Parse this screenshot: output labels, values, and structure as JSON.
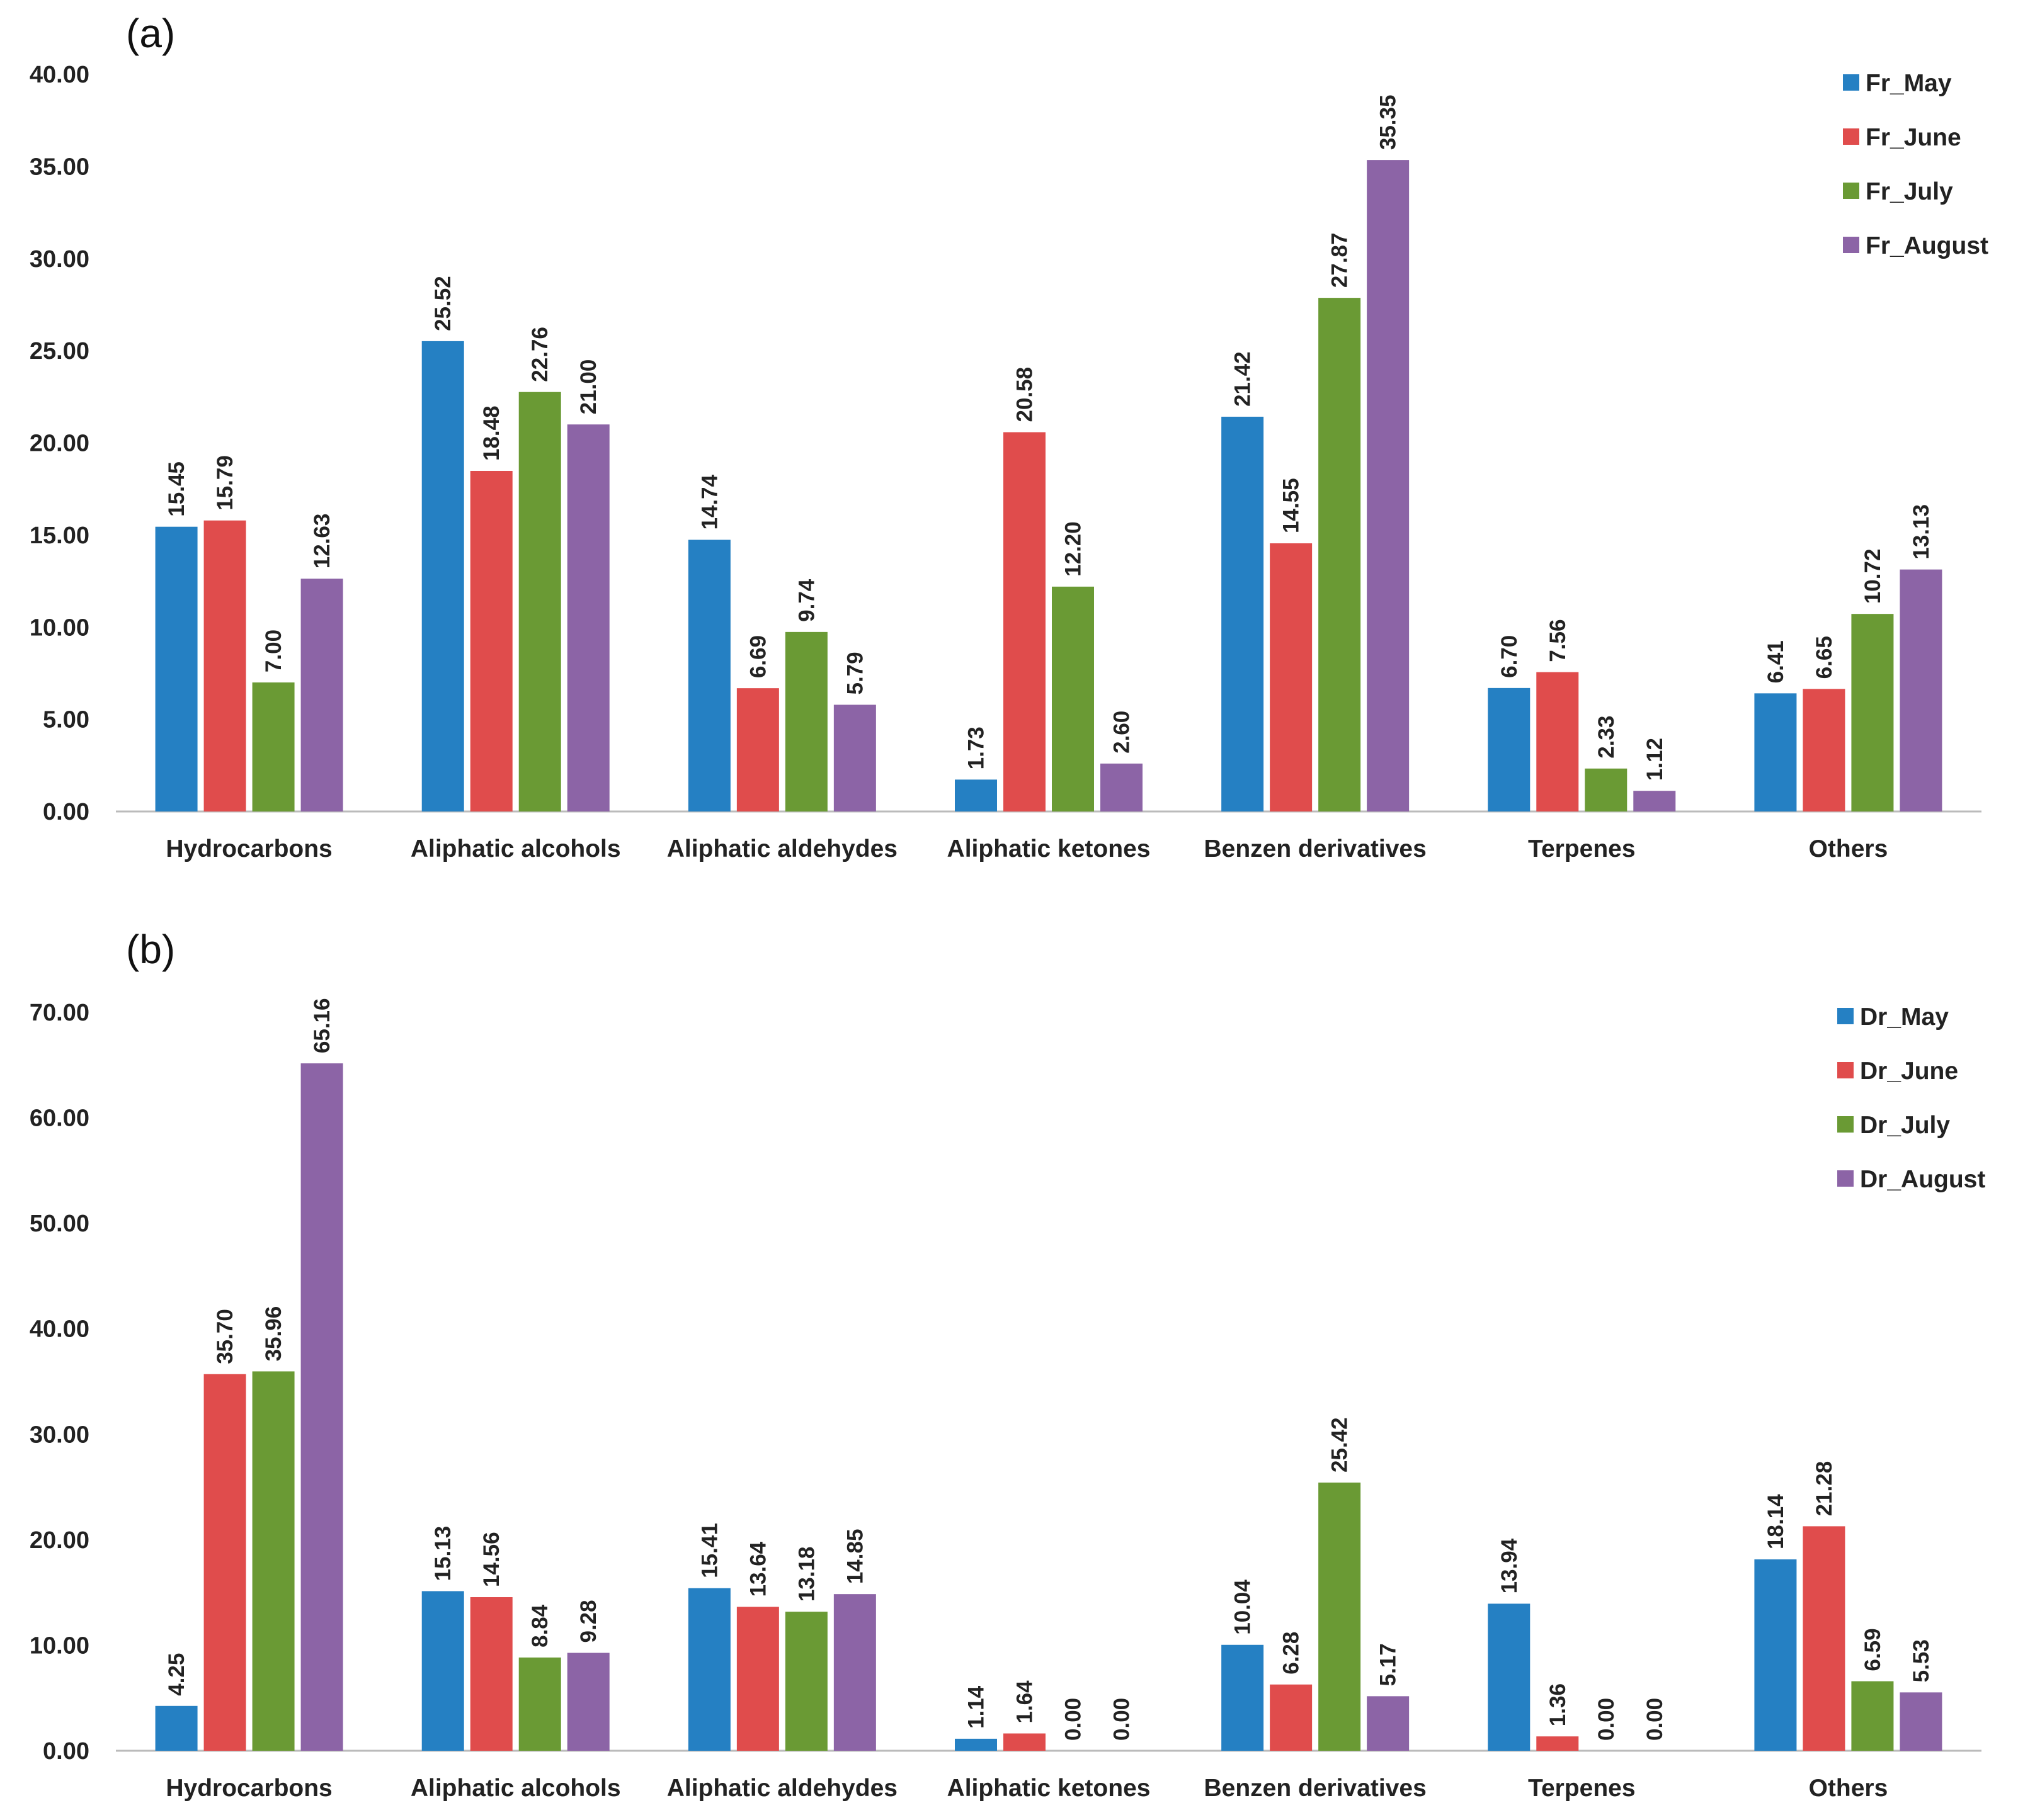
{
  "chart_data": [
    {
      "type": "bar",
      "panel_label": "(a)",
      "categories": [
        "Hydrocarbons",
        "Aliphatic alcohols",
        "Aliphatic aldehydes",
        "Aliphatic ketones",
        "Benzen derivatives",
        "Terpenes",
        "Others"
      ],
      "ylim": [
        0,
        40
      ],
      "yticks": [
        "0.00",
        "5.00",
        "10.00",
        "15.00",
        "20.00",
        "25.00",
        "30.00",
        "35.00",
        "40.00"
      ],
      "grid": false,
      "legend_placement": "top-right",
      "series": [
        {
          "name": "Fr_May",
          "color": "#2580c3",
          "values": [
            15.45,
            25.52,
            14.74,
            1.73,
            21.42,
            6.7,
            6.41
          ]
        },
        {
          "name": "Fr_June",
          "color": "#e04c4c",
          "values": [
            15.79,
            18.48,
            6.69,
            20.58,
            14.55,
            7.56,
            6.65
          ]
        },
        {
          "name": "Fr_July",
          "color": "#6a9a34",
          "values": [
            7.0,
            22.76,
            9.74,
            12.2,
            27.87,
            2.33,
            10.72
          ]
        },
        {
          "name": "Fr_August",
          "color": "#8c64a6",
          "values": [
            12.63,
            21.0,
            5.79,
            2.6,
            35.35,
            1.12,
            13.13
          ]
        }
      ]
    },
    {
      "type": "bar",
      "panel_label": "(b)",
      "categories": [
        "Hydrocarbons",
        "Aliphatic alcohols",
        "Aliphatic aldehydes",
        "Aliphatic ketones",
        "Benzen derivatives",
        "Terpenes",
        "Others"
      ],
      "ylim": [
        0,
        70
      ],
      "yticks": [
        "0.00",
        "10.00",
        "20.00",
        "30.00",
        "40.00",
        "50.00",
        "60.00",
        "70.00"
      ],
      "grid": false,
      "legend_placement": "top-right",
      "series": [
        {
          "name": "Dr_May",
          "color": "#2580c3",
          "values": [
            4.25,
            15.13,
            15.41,
            1.14,
            10.04,
            13.94,
            18.14
          ]
        },
        {
          "name": "Dr_June",
          "color": "#e04c4c",
          "values": [
            35.7,
            14.56,
            13.64,
            1.64,
            6.28,
            1.36,
            21.28
          ]
        },
        {
          "name": "Dr_July",
          "color": "#6a9a34",
          "values": [
            35.96,
            8.84,
            13.18,
            0.0,
            25.42,
            0.0,
            6.59
          ]
        },
        {
          "name": "Dr_August",
          "color": "#8c64a6",
          "values": [
            65.16,
            9.28,
            14.85,
            0.0,
            5.17,
            0.0,
            5.53
          ]
        }
      ]
    }
  ]
}
